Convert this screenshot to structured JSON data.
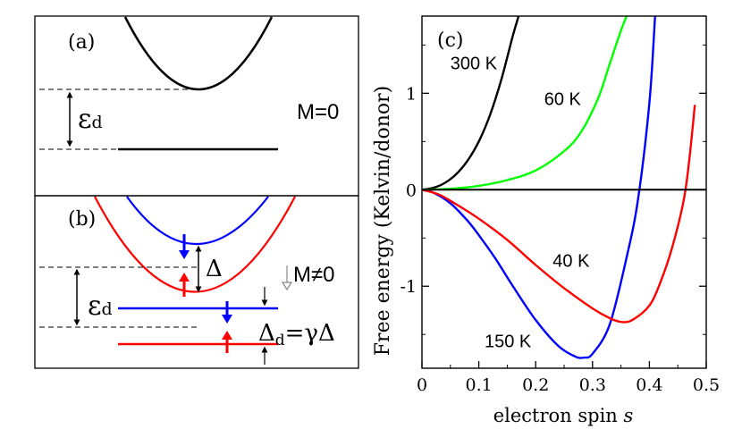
{
  "panel_a": {
    "label": "(a)",
    "eps_symbol": "ε",
    "eps_sub": "d",
    "state_label": "M=0"
  },
  "panel_b": {
    "label": "(b)",
    "eps_symbol": "ε",
    "eps_sub": "d",
    "delta_label": "Δ",
    "state_label": "M≠0",
    "delta_d_symbol": "Δ",
    "delta_d_sub": "d",
    "delta_d_rhs": "=γΔ"
  },
  "colors": {
    "black": "#000000",
    "red": "#ff0000",
    "blue": "#0000ff",
    "green": "#00ff00",
    "gray": "#888888"
  },
  "chart_data": {
    "type": "line",
    "panel_label": "(c)",
    "xlabel": "electron spin s",
    "xlabel_main": "electron spin ",
    "xlabel_var": "s",
    "ylabel": "Free energy (Kelvin/donor)",
    "xlim": [
      0,
      0.5
    ],
    "ylim": [
      -1.85,
      1.8
    ],
    "xticks": [
      0,
      0.1,
      0.2,
      0.3,
      0.4,
      0.5
    ],
    "xtick_labels": [
      "0",
      "0.1",
      "0.2",
      "0.3",
      "0.4",
      "0.5"
    ],
    "yticks": [
      -1,
      0,
      1
    ],
    "ytick_labels": [
      "-1",
      "0",
      "1"
    ],
    "grid": false,
    "reference_line_y": 0,
    "series": [
      {
        "name": "300 K",
        "color": "#000000",
        "x": [
          0,
          0.02,
          0.04,
          0.06,
          0.08,
          0.1,
          0.12,
          0.14,
          0.16,
          0.17
        ],
        "y": [
          0,
          0.02,
          0.07,
          0.16,
          0.3,
          0.5,
          0.78,
          1.15,
          1.6,
          1.8
        ]
      },
      {
        "name": "60 K",
        "color": "#00ff00",
        "x": [
          0,
          0.05,
          0.1,
          0.15,
          0.2,
          0.25,
          0.28,
          0.31,
          0.33,
          0.35,
          0.36
        ],
        "y": [
          0,
          0.01,
          0.04,
          0.1,
          0.2,
          0.4,
          0.6,
          0.95,
          1.3,
          1.65,
          1.8
        ]
      },
      {
        "name": "150 K",
        "color": "#0000ff",
        "x": [
          0,
          0.02,
          0.05,
          0.08,
          0.1,
          0.13,
          0.16,
          0.2,
          0.24,
          0.27,
          0.285,
          0.3,
          0.33,
          0.36,
          0.38,
          0.4,
          0.41
        ],
        "y": [
          0,
          -0.03,
          -0.14,
          -0.32,
          -0.47,
          -0.72,
          -1.0,
          -1.35,
          -1.62,
          -1.73,
          -1.74,
          -1.7,
          -1.4,
          -0.7,
          -0.1,
          0.9,
          1.8
        ]
      },
      {
        "name": "40 K",
        "color": "#ff0000",
        "x": [
          0,
          0.03,
          0.06,
          0.1,
          0.15,
          0.2,
          0.25,
          0.3,
          0.33,
          0.35,
          0.37,
          0.4,
          0.42,
          0.44,
          0.46,
          0.47,
          0.48
        ],
        "y": [
          0,
          -0.05,
          -0.15,
          -0.3,
          -0.52,
          -0.78,
          -1.02,
          -1.23,
          -1.33,
          -1.37,
          -1.35,
          -1.2,
          -0.95,
          -0.6,
          -0.12,
          0.3,
          0.88
        ]
      }
    ],
    "annotations": [
      {
        "text": "300 K",
        "x": 0.05,
        "y": 1.25
      },
      {
        "text": "60 K",
        "x": 0.215,
        "y": 0.88
      },
      {
        "text": "40 K",
        "x": 0.23,
        "y": -0.8
      },
      {
        "text": "150 K",
        "x": 0.11,
        "y": -1.63
      }
    ]
  }
}
